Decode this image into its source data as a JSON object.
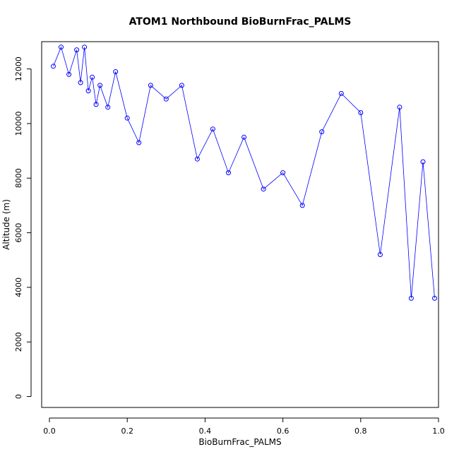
{
  "chart_data": {
    "type": "scatter",
    "title": "ATOM1 Northbound BioBurnFrac_PALMS",
    "xlabel": "BioBurnFrac_PALMS",
    "ylabel": "Altitude (m)",
    "xlim": [
      -0.02,
      1.0
    ],
    "ylim": [
      -400,
      13000
    ],
    "xticks": [
      0.0,
      0.2,
      0.4,
      0.6,
      0.8,
      1.0
    ],
    "xtick_labels": [
      "0.0",
      "0.2",
      "0.4",
      "0.6",
      "0.8",
      "1.0"
    ],
    "yticks": [
      0,
      2000,
      4000,
      6000,
      8000,
      10000,
      12000
    ],
    "ytick_labels": [
      "0",
      "2000",
      "4000",
      "6000",
      "8000",
      "10000",
      "12000"
    ],
    "grid": false,
    "marker": "open-circle",
    "connected": true,
    "color": "#0000ff",
    "series": [
      {
        "x": [
          0.01,
          0.03,
          0.05,
          0.07,
          0.08,
          0.09,
          0.1,
          0.11,
          0.12,
          0.13,
          0.15,
          0.17,
          0.2,
          0.23,
          0.26,
          0.3,
          0.34,
          0.38,
          0.42,
          0.46,
          0.5,
          0.55,
          0.6,
          0.65,
          0.7,
          0.75,
          0.8,
          0.85,
          0.9,
          0.93,
          0.96,
          0.99
        ],
        "y": [
          12100,
          12800,
          11800,
          12700,
          11500,
          12800,
          11200,
          11700,
          10700,
          11400,
          10600,
          11900,
          10200,
          9300,
          11400,
          10900,
          11400,
          8700,
          9800,
          8200,
          9500,
          7600,
          8200,
          7000,
          9700,
          11100,
          10400,
          5200,
          10600,
          3600,
          8600,
          3600
        ]
      }
    ]
  }
}
